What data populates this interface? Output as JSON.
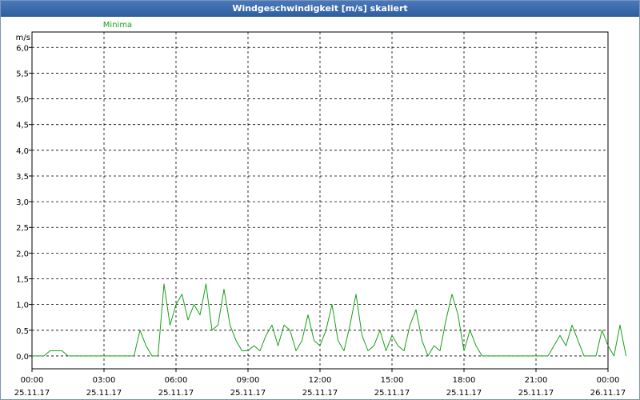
{
  "window": {
    "title": "Windgeschwindigkeit [m/s] skaliert"
  },
  "chart_data": {
    "type": "line",
    "title": "Windgeschwindigkeit [m/s] skaliert",
    "ylabel": "m/s",
    "ylim": [
      -0.25,
      6.3
    ],
    "xlim": [
      0,
      96
    ],
    "grid": true,
    "y_ticks": [
      "0,0",
      "0,5",
      "1,0",
      "1,5",
      "2,0",
      "2,5",
      "3,0",
      "3,5",
      "4,0",
      "4,5",
      "5,0",
      "5,5",
      "6,0"
    ],
    "x_ticks": [
      {
        "time": "00:00",
        "date": "25.11.17"
      },
      {
        "time": "03:00",
        "date": "25.11.17"
      },
      {
        "time": "06:00",
        "date": "25.11.17"
      },
      {
        "time": "09:00",
        "date": "25.11.17"
      },
      {
        "time": "12:00",
        "date": "25.11.17"
      },
      {
        "time": "15:00",
        "date": "25.11.17"
      },
      {
        "time": "18:00",
        "date": "25.11.17"
      },
      {
        "time": "21:00",
        "date": "25.11.17"
      },
      {
        "time": "00:00",
        "date": "26.11.17"
      }
    ],
    "series": [
      {
        "name": "Minima",
        "color": "#18a018",
        "legend_pos": "left",
        "values": [
          0.0,
          0.0,
          0.0,
          0.1,
          0.1,
          0.1,
          0.0,
          0.0,
          0.0,
          0.0,
          0.0,
          0.0,
          0.0,
          0.0,
          0.0,
          0.0,
          0.0,
          0.0,
          0.5,
          0.2,
          0.0,
          0.0,
          1.4,
          0.6,
          1.0,
          1.2,
          0.7,
          1.0,
          0.8,
          1.4,
          0.5,
          0.6,
          1.3,
          0.6,
          0.3,
          0.1,
          0.1,
          0.2,
          0.1,
          0.4,
          0.6,
          0.2,
          0.6,
          0.5,
          0.1,
          0.3,
          0.8,
          0.3,
          0.2,
          0.5,
          1.0,
          0.3,
          0.1,
          0.6,
          1.2,
          0.4,
          0.1,
          0.2,
          0.5,
          0.1,
          0.4,
          0.2,
          0.1,
          0.6,
          0.9,
          0.3,
          0.0,
          0.2,
          0.1,
          0.7,
          1.2,
          0.8,
          0.1,
          0.5,
          0.2,
          0.0,
          0.0,
          0.0,
          0.0,
          0.0,
          0.0,
          0.0,
          0.0,
          0.0,
          0.0,
          0.0,
          0.0,
          0.2,
          0.4,
          0.2,
          0.6,
          0.3,
          0.0,
          0.0,
          0.0,
          0.5,
          0.2,
          0.0,
          0.6,
          0.0
        ]
      }
    ]
  }
}
